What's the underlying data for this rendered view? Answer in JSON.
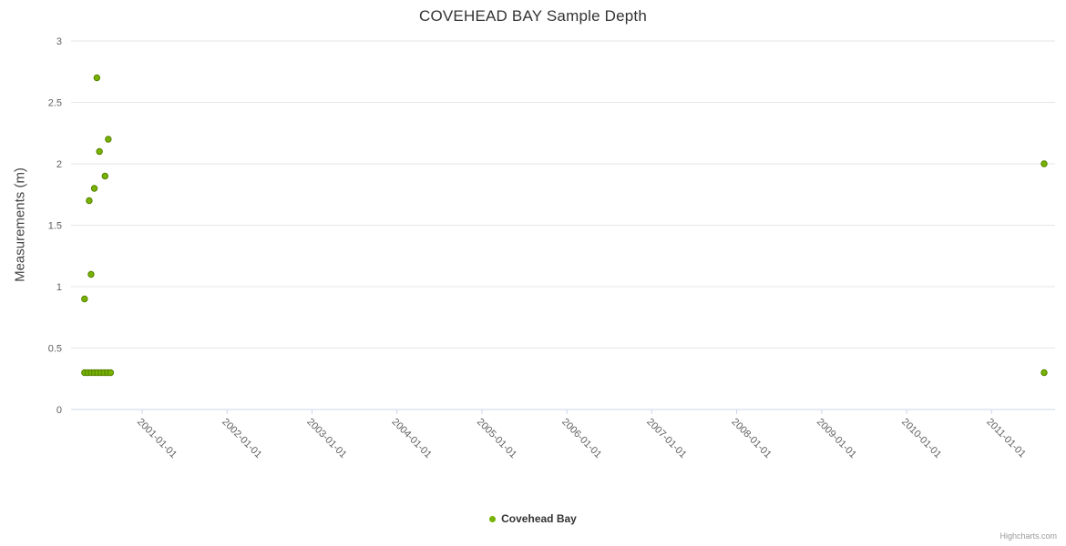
{
  "page": {
    "credits": "Highcharts.com"
  },
  "colors": {
    "series_green": "#77b300",
    "series_green_stroke": "#558000",
    "gridline": "#e6e6e6",
    "axis_line": "#ccd6eb",
    "title_text": "#333333",
    "axis_text": "#606060"
  },
  "chart_data": {
    "type": "scatter",
    "title": "COVEHEAD BAY Sample Depth",
    "xlabel": "",
    "ylabel": "Measurements (m)",
    "ylim": [
      0,
      3
    ],
    "yticks": [
      0,
      0.5,
      1,
      1.5,
      2,
      2.5,
      3
    ],
    "ytick_labels": [
      "0",
      "0.5",
      "1",
      "1.5",
      "2",
      "2.5",
      "3"
    ],
    "xticks": [
      "2001-01-01",
      "2002-01-01",
      "2003-01-01",
      "2004-01-01",
      "2005-01-01",
      "2006-01-01",
      "2007-01-01",
      "2008-01-01",
      "2009-01-01",
      "2010-01-01",
      "2011-01-01"
    ],
    "xrange": [
      "2000-03-01",
      "2011-10-01"
    ],
    "grid": "horizontal",
    "legend_position": "bottom-center",
    "series": [
      {
        "name": "Covehead Bay",
        "color": "#77b300",
        "points": [
          {
            "x": "2000-04-28",
            "y": 0.9
          },
          {
            "x": "2000-05-18",
            "y": 1.7
          },
          {
            "x": "2000-05-26",
            "y": 1.1
          },
          {
            "x": "2000-06-09",
            "y": 1.8
          },
          {
            "x": "2000-06-20",
            "y": 2.7
          },
          {
            "x": "2000-07-01",
            "y": 2.1
          },
          {
            "x": "2000-07-25",
            "y": 1.9
          },
          {
            "x": "2000-08-08",
            "y": 2.2
          },
          {
            "x": "2000-04-28",
            "y": 0.3
          },
          {
            "x": "2000-05-12",
            "y": 0.3
          },
          {
            "x": "2000-05-26",
            "y": 0.3
          },
          {
            "x": "2000-06-09",
            "y": 0.3
          },
          {
            "x": "2000-06-23",
            "y": 0.3
          },
          {
            "x": "2000-07-07",
            "y": 0.3
          },
          {
            "x": "2000-07-21",
            "y": 0.3
          },
          {
            "x": "2000-08-04",
            "y": 0.3
          },
          {
            "x": "2000-08-18",
            "y": 0.3
          },
          {
            "x": "2011-08-15",
            "y": 2.0
          },
          {
            "x": "2011-08-15",
            "y": 0.3
          }
        ]
      }
    ]
  }
}
